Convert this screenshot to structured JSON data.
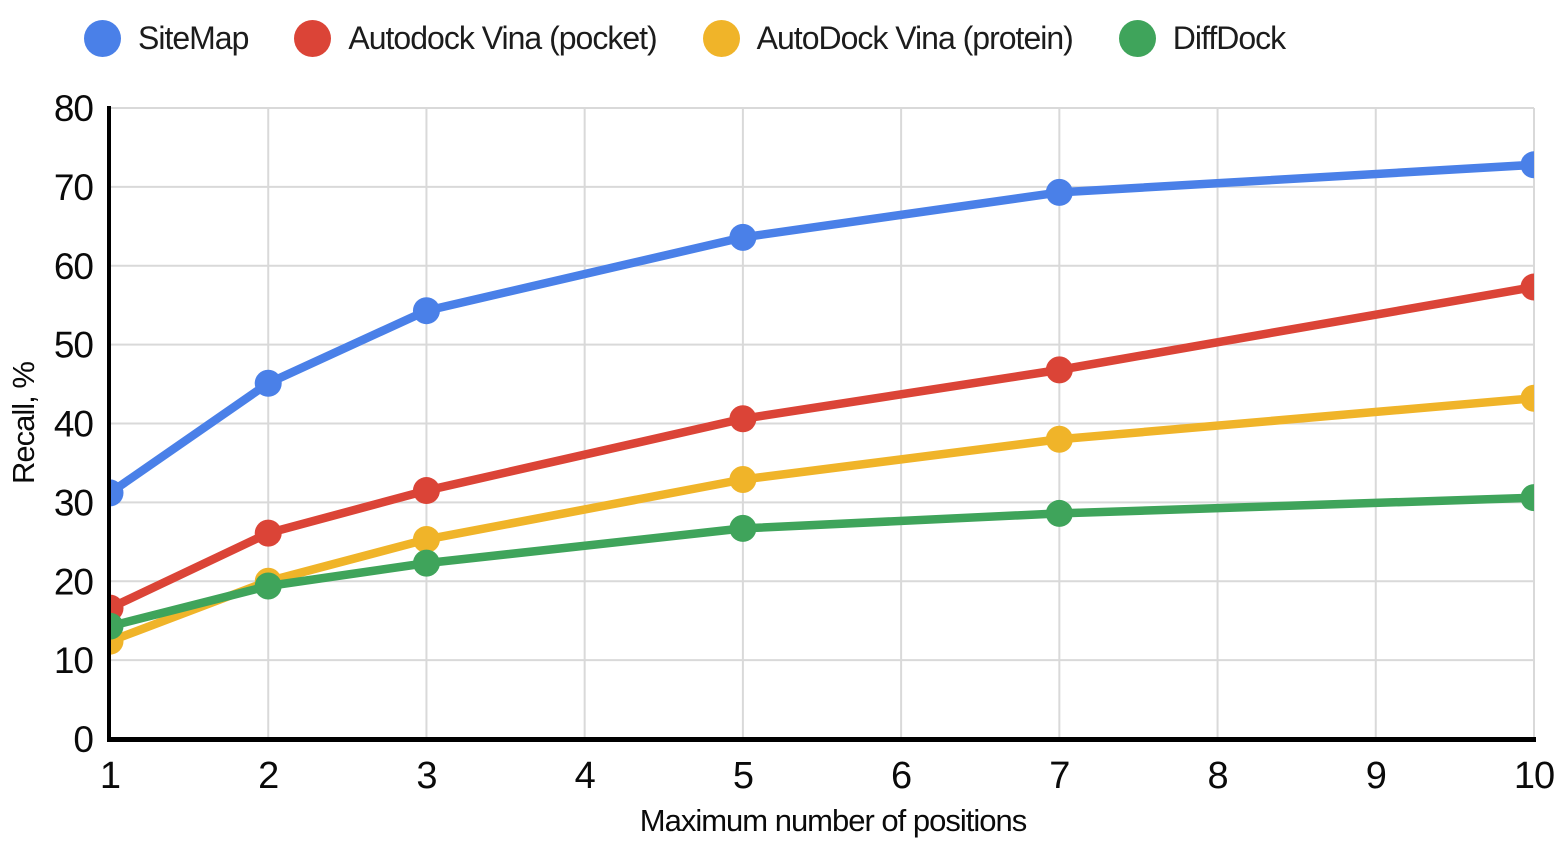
{
  "chart_data": {
    "type": "line",
    "title": "",
    "xlabel": "Maximum number of positions",
    "ylabel": "Recall, %",
    "x": [
      1,
      2,
      3,
      5,
      7,
      10
    ],
    "series": [
      {
        "name": "SiteMap",
        "color": "#4A80E8",
        "values": [
          31.2,
          45.1,
          54.3,
          63.6,
          69.3,
          72.8
        ]
      },
      {
        "name": "Autodock Vina (pocket)",
        "color": "#DB4437",
        "values": [
          16.6,
          26.1,
          31.5,
          40.6,
          46.8,
          57.3
        ]
      },
      {
        "name": "AutoDock Vina (protein)",
        "color": "#F0B429",
        "values": [
          12.4,
          20.0,
          25.3,
          32.9,
          38.0,
          43.2
        ]
      },
      {
        "name": "DiffDock",
        "color": "#3FA45B",
        "values": [
          14.3,
          19.4,
          22.3,
          26.7,
          28.6,
          30.6
        ]
      }
    ],
    "x_ticks": [
      1,
      2,
      3,
      4,
      5,
      6,
      7,
      8,
      9,
      10
    ],
    "y_ticks": [
      0,
      10,
      20,
      30,
      40,
      50,
      60,
      70,
      80
    ],
    "xlim": [
      1,
      10
    ],
    "ylim": [
      0,
      80
    ],
    "grid": true,
    "legend_position": "top",
    "marker": "circle",
    "axis_color": "#000000",
    "gridline_color": "#D9D9D9",
    "background_color": "#FFFFFF"
  }
}
